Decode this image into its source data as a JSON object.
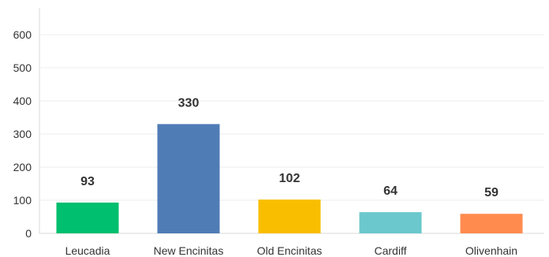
{
  "chart_data": {
    "type": "bar",
    "categories": [
      "Leucadia",
      "New Encinitas",
      "Old Encinitas",
      "Cardiff",
      "Olivenhain"
    ],
    "values": [
      93,
      330,
      102,
      64,
      59
    ],
    "colors": [
      "#00bf6f",
      "#507cb6",
      "#f9be00",
      "#6bc8cd",
      "#ff8b4f"
    ],
    "ylim": [
      0,
      600
    ],
    "yticks": [
      0,
      100,
      200,
      300,
      400,
      500,
      600
    ],
    "ytick_labels": [
      "0",
      "100",
      "200",
      "300",
      "400",
      "500",
      "600"
    ],
    "grid": true,
    "data_labels": [
      "93",
      "330",
      "102",
      "64",
      "59"
    ]
  }
}
